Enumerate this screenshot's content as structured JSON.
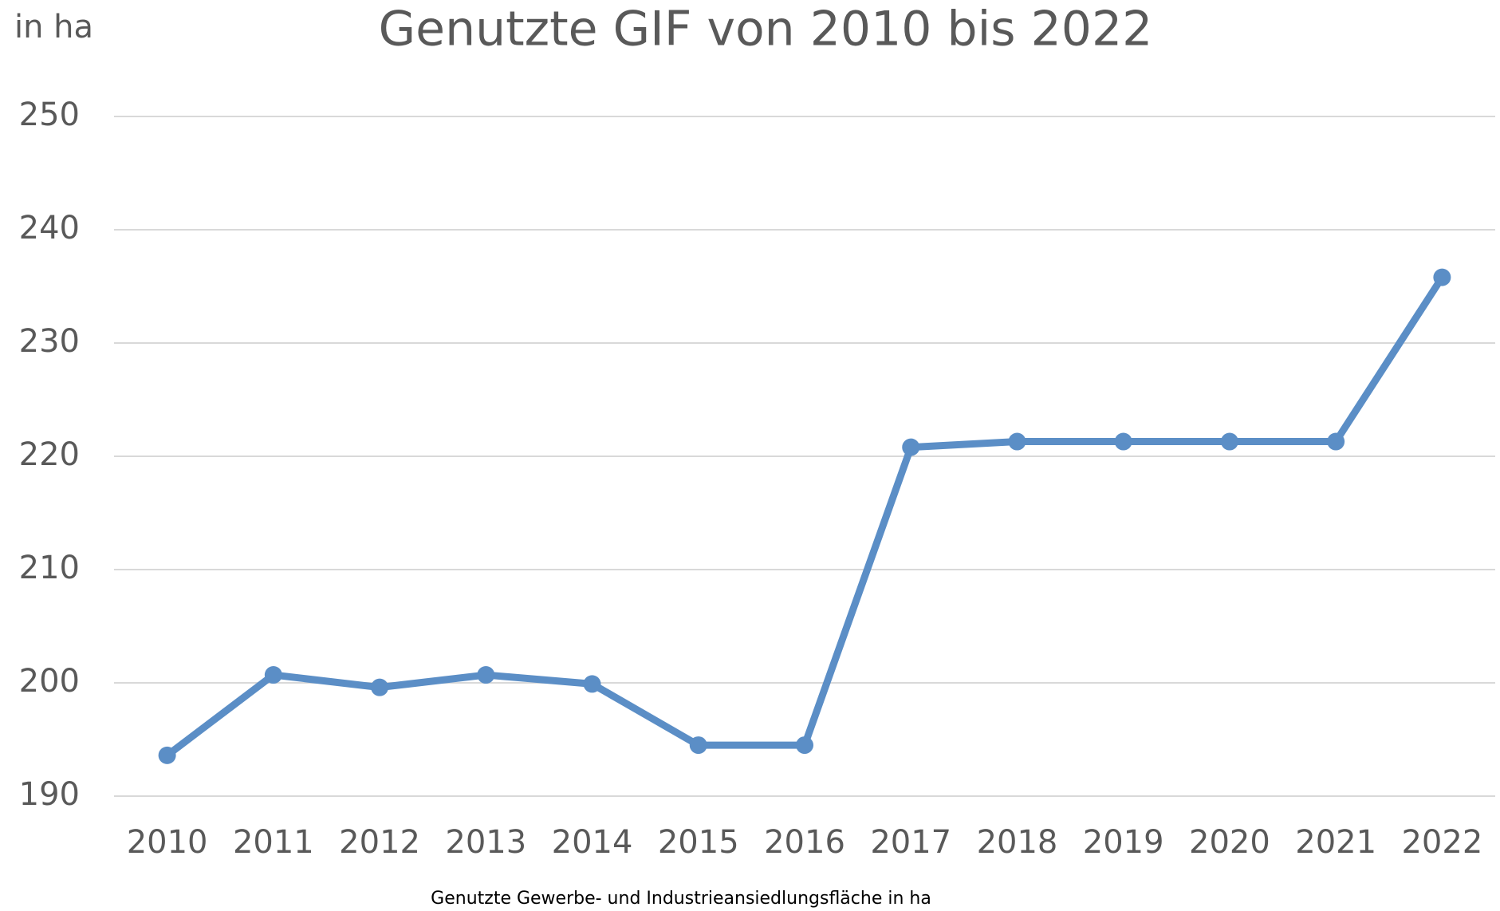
{
  "chart_data": {
    "type": "line",
    "title": "Genutzte GIF von 2010 bis 2022",
    "y_label": "in ha",
    "caption": "Genutzte Gewerbe- und Industrieansiedlungsfläche in ha",
    "categories": [
      "2010",
      "2011",
      "2012",
      "2013",
      "2014",
      "2015",
      "2016",
      "2017",
      "2018",
      "2019",
      "2020",
      "2021",
      "2022"
    ],
    "series": [
      {
        "name": "Genutzte GIF",
        "color": "#5b8ec6",
        "values": [
          193.6,
          200.7,
          199.6,
          200.7,
          199.9,
          194.5,
          194.5,
          220.8,
          221.3,
          221.3,
          221.3,
          221.3,
          235.8
        ]
      }
    ],
    "ylim": [
      190,
      250
    ],
    "yticks": [
      190,
      200,
      210,
      220,
      230,
      240,
      250
    ],
    "grid": true
  }
}
